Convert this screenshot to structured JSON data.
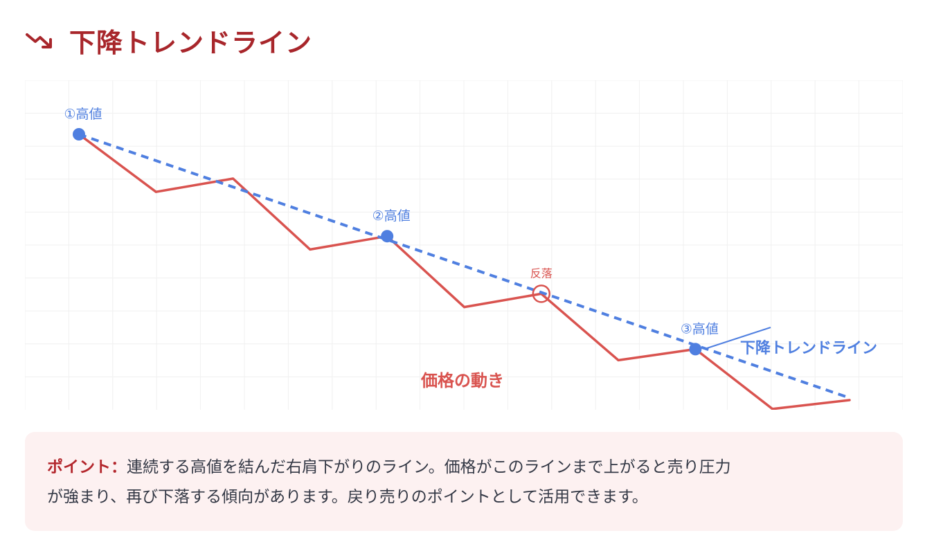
{
  "header": {
    "title": "下降トレンドライン",
    "icon": "trending-down-icon",
    "color": "#a8262b"
  },
  "chart_data": {
    "type": "line",
    "title": "",
    "series": [
      {
        "name": "価格の動き",
        "color": "#d9534f",
        "x": [
          0,
          1,
          2,
          3,
          4,
          5,
          6,
          7,
          8,
          9,
          10
        ],
        "values": [
          100,
          74,
          80,
          48,
          54,
          22,
          28,
          -2,
          3,
          -24,
          -20
        ]
      }
    ],
    "trendline": {
      "name": "下降トレンドライン",
      "color": "#4f7fe0",
      "style": "dashed",
      "from": {
        "x": 0,
        "y": 100
      },
      "to": {
        "x": 10,
        "y": -19
      }
    },
    "annotations": [
      {
        "label": "①高値",
        "x": 0,
        "y": 100,
        "kind": "touch"
      },
      {
        "label": "②高値",
        "x": 4,
        "y": 54,
        "kind": "touch"
      },
      {
        "label": "反落",
        "x": 6,
        "y": 28,
        "kind": "rebound"
      },
      {
        "label": "③高値",
        "x": 8,
        "y": 3,
        "kind": "touch"
      }
    ],
    "grid": true,
    "xlabel": "",
    "ylabel": ""
  },
  "point": {
    "label": "ポイント：",
    "text_line1": "連続する高値を結んだ右肩下がりのライン。価格がこのラインまで上がると売り圧力",
    "text_line2": "が強まり、再び下落する傾向があります。戻り売りのポイントとして活用できます。"
  },
  "colors": {
    "price": "#d9534f",
    "trend": "#4f7fe0",
    "box_bg": "#fdf1f1",
    "accent": "#b3262c"
  }
}
